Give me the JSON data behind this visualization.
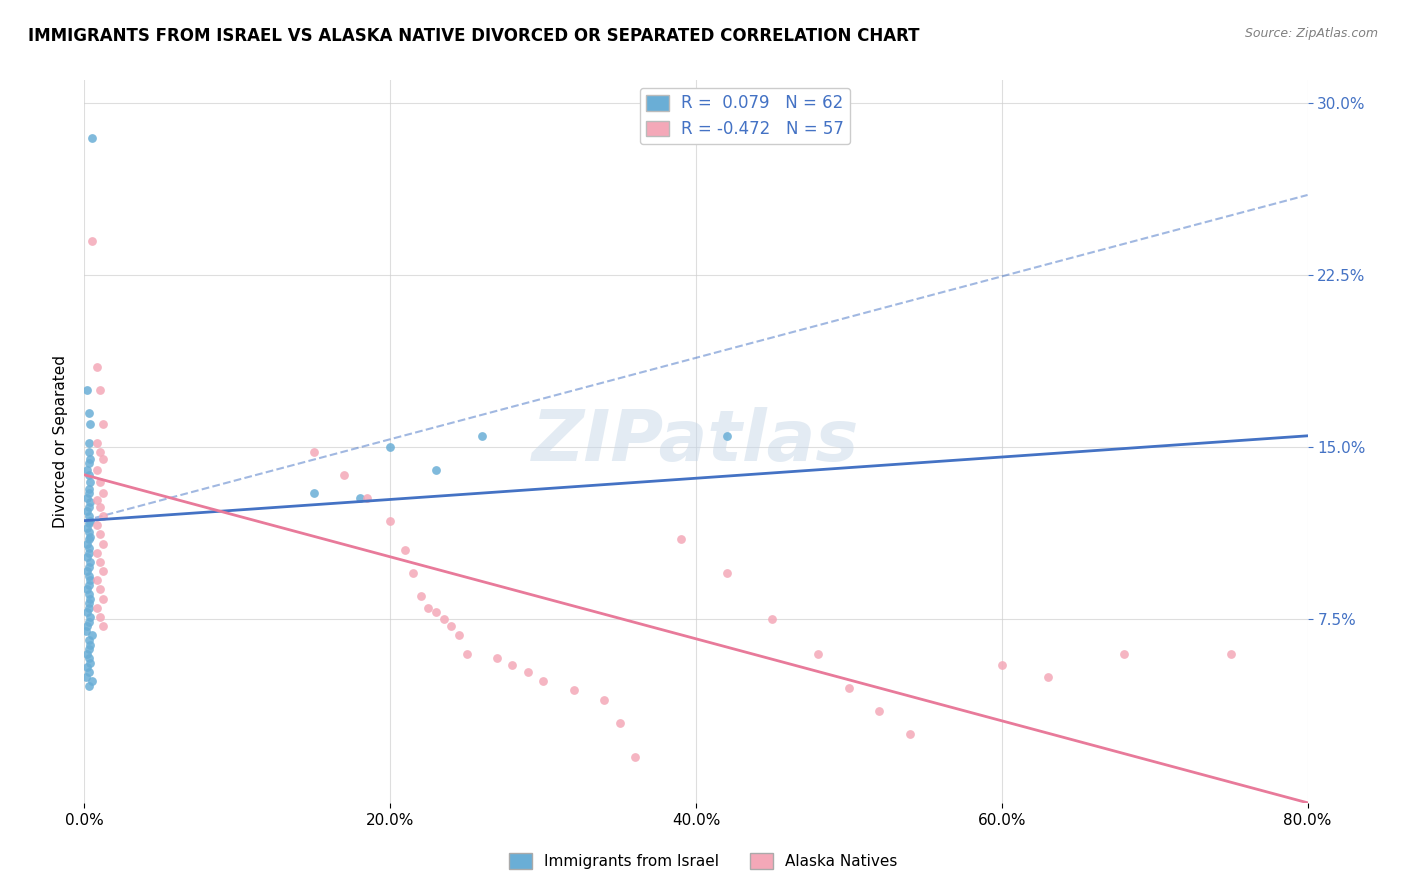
{
  "title": "IMMIGRANTS FROM ISRAEL VS ALASKA NATIVE DIVORCED OR SEPARATED CORRELATION CHART",
  "source": "Source: ZipAtlas.com",
  "xlabel_ticks": [
    "0.0%",
    "20.0%",
    "40.0%",
    "60.0%",
    "80.0%"
  ],
  "ylabel_ticks": [
    "7.5%",
    "15.0%",
    "22.5%",
    "30.0%"
  ],
  "xlim": [
    0.0,
    0.8
  ],
  "ylim": [
    -0.005,
    0.31
  ],
  "legend_label1": "Immigrants from Israel",
  "legend_label2": "Alaska Natives",
  "legend_R1": "R =  0.079",
  "legend_N1": "N = 62",
  "legend_R2": "R = -0.472",
  "legend_N2": "N = 57",
  "color_blue": "#6aaed6",
  "color_pink": "#f4a8b8",
  "color_blue_dark": "#4472c4",
  "color_pink_dark": "#e87a9a",
  "color_legend_text": "#4472c4",
  "watermark": "ZIPatlas",
  "ylabel": "Divorced or Separated",
  "blue_points": [
    [
      0.005,
      0.285
    ],
    [
      0.002,
      0.175
    ],
    [
      0.003,
      0.165
    ],
    [
      0.004,
      0.16
    ],
    [
      0.003,
      0.152
    ],
    [
      0.003,
      0.148
    ],
    [
      0.004,
      0.145
    ],
    [
      0.003,
      0.143
    ],
    [
      0.002,
      0.14
    ],
    [
      0.003,
      0.138
    ],
    [
      0.004,
      0.135
    ],
    [
      0.003,
      0.132
    ],
    [
      0.003,
      0.13
    ],
    [
      0.002,
      0.128
    ],
    [
      0.004,
      0.126
    ],
    [
      0.003,
      0.124
    ],
    [
      0.002,
      0.122
    ],
    [
      0.003,
      0.12
    ],
    [
      0.004,
      0.118
    ],
    [
      0.003,
      0.117
    ],
    [
      0.002,
      0.115
    ],
    [
      0.003,
      0.113
    ],
    [
      0.004,
      0.111
    ],
    [
      0.003,
      0.11
    ],
    [
      0.002,
      0.108
    ],
    [
      0.003,
      0.106
    ],
    [
      0.003,
      0.104
    ],
    [
      0.002,
      0.102
    ],
    [
      0.004,
      0.1
    ],
    [
      0.003,
      0.098
    ],
    [
      0.002,
      0.096
    ],
    [
      0.003,
      0.094
    ],
    [
      0.004,
      0.092
    ],
    [
      0.003,
      0.09
    ],
    [
      0.002,
      0.088
    ],
    [
      0.003,
      0.086
    ],
    [
      0.004,
      0.084
    ],
    [
      0.003,
      0.082
    ],
    [
      0.003,
      0.08
    ],
    [
      0.002,
      0.078
    ],
    [
      0.004,
      0.076
    ],
    [
      0.003,
      0.074
    ],
    [
      0.002,
      0.072
    ],
    [
      0.001,
      0.07
    ],
    [
      0.005,
      0.068
    ],
    [
      0.003,
      0.066
    ],
    [
      0.004,
      0.064
    ],
    [
      0.003,
      0.062
    ],
    [
      0.002,
      0.06
    ],
    [
      0.003,
      0.058
    ],
    [
      0.004,
      0.056
    ],
    [
      0.002,
      0.054
    ],
    [
      0.003,
      0.052
    ],
    [
      0.001,
      0.05
    ],
    [
      0.005,
      0.048
    ],
    [
      0.003,
      0.046
    ],
    [
      0.15,
      0.13
    ],
    [
      0.18,
      0.128
    ],
    [
      0.2,
      0.15
    ],
    [
      0.23,
      0.14
    ],
    [
      0.26,
      0.155
    ],
    [
      0.42,
      0.155
    ]
  ],
  "pink_points": [
    [
      0.005,
      0.24
    ],
    [
      0.008,
      0.185
    ],
    [
      0.01,
      0.175
    ],
    [
      0.012,
      0.16
    ],
    [
      0.008,
      0.152
    ],
    [
      0.01,
      0.148
    ],
    [
      0.012,
      0.145
    ],
    [
      0.008,
      0.14
    ],
    [
      0.01,
      0.135
    ],
    [
      0.012,
      0.13
    ],
    [
      0.008,
      0.127
    ],
    [
      0.01,
      0.124
    ],
    [
      0.012,
      0.12
    ],
    [
      0.008,
      0.116
    ],
    [
      0.01,
      0.112
    ],
    [
      0.012,
      0.108
    ],
    [
      0.008,
      0.104
    ],
    [
      0.01,
      0.1
    ],
    [
      0.012,
      0.096
    ],
    [
      0.008,
      0.092
    ],
    [
      0.01,
      0.088
    ],
    [
      0.012,
      0.084
    ],
    [
      0.008,
      0.08
    ],
    [
      0.01,
      0.076
    ],
    [
      0.012,
      0.072
    ],
    [
      0.15,
      0.148
    ],
    [
      0.17,
      0.138
    ],
    [
      0.185,
      0.128
    ],
    [
      0.2,
      0.118
    ],
    [
      0.21,
      0.105
    ],
    [
      0.215,
      0.095
    ],
    [
      0.22,
      0.085
    ],
    [
      0.225,
      0.08
    ],
    [
      0.23,
      0.078
    ],
    [
      0.235,
      0.075
    ],
    [
      0.24,
      0.072
    ],
    [
      0.245,
      0.068
    ],
    [
      0.25,
      0.06
    ],
    [
      0.27,
      0.058
    ],
    [
      0.28,
      0.055
    ],
    [
      0.29,
      0.052
    ],
    [
      0.3,
      0.048
    ],
    [
      0.32,
      0.044
    ],
    [
      0.34,
      0.04
    ],
    [
      0.35,
      0.03
    ],
    [
      0.36,
      0.015
    ],
    [
      0.39,
      0.11
    ],
    [
      0.42,
      0.095
    ],
    [
      0.45,
      0.075
    ],
    [
      0.48,
      0.06
    ],
    [
      0.5,
      0.045
    ],
    [
      0.52,
      0.035
    ],
    [
      0.54,
      0.025
    ],
    [
      0.6,
      0.055
    ],
    [
      0.63,
      0.05
    ],
    [
      0.68,
      0.06
    ],
    [
      0.75,
      0.06
    ]
  ],
  "blue_trend_x": [
    0.0,
    0.8
  ],
  "blue_trend_y": [
    0.118,
    0.155
  ],
  "pink_trend_x": [
    0.0,
    0.8
  ],
  "pink_trend_y": [
    0.138,
    -0.005
  ]
}
